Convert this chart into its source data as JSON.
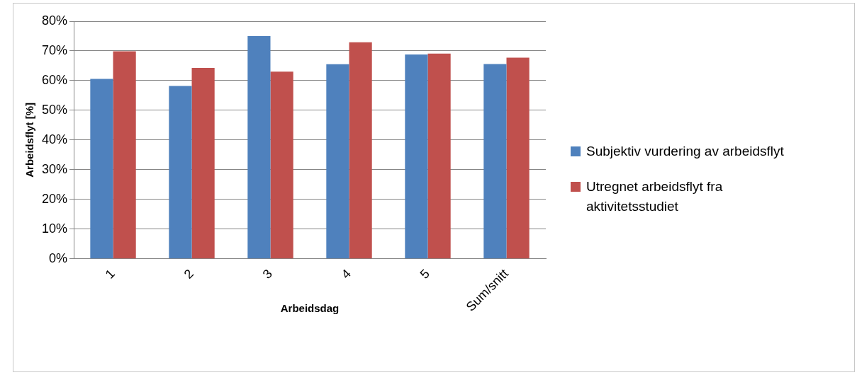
{
  "chart_data": {
    "type": "bar",
    "xlabel": "Arbeidsdag",
    "ylabel": "Arbeidsflyt [%]",
    "categories": [
      "1",
      "2",
      "3",
      "4",
      "5",
      "Sum/snitt"
    ],
    "series": [
      {
        "name": "Subjektiv vurdering av arbeidsflyt",
        "color": "#4f81bd",
        "values": [
          60.6,
          58.2,
          75.0,
          65.5,
          68.8,
          65.6
        ]
      },
      {
        "name": "Utregnet arbeidsflyt fra aktivitetsstudiet",
        "color": "#c0504d",
        "values": [
          69.9,
          64.3,
          63.0,
          72.9,
          69.1,
          67.7
        ]
      }
    ],
    "ylim": [
      0,
      80
    ],
    "yticks": [
      {
        "value": 0,
        "label": "0%"
      },
      {
        "value": 10,
        "label": "10%"
      },
      {
        "value": 20,
        "label": "20%"
      },
      {
        "value": 30,
        "label": "30%"
      },
      {
        "value": 40,
        "label": "40%"
      },
      {
        "value": 50,
        "label": "50%"
      },
      {
        "value": 60,
        "label": "60%"
      },
      {
        "value": 70,
        "label": "70%"
      },
      {
        "value": 80,
        "label": "80%"
      }
    ],
    "grid": "y",
    "legend": "right"
  }
}
